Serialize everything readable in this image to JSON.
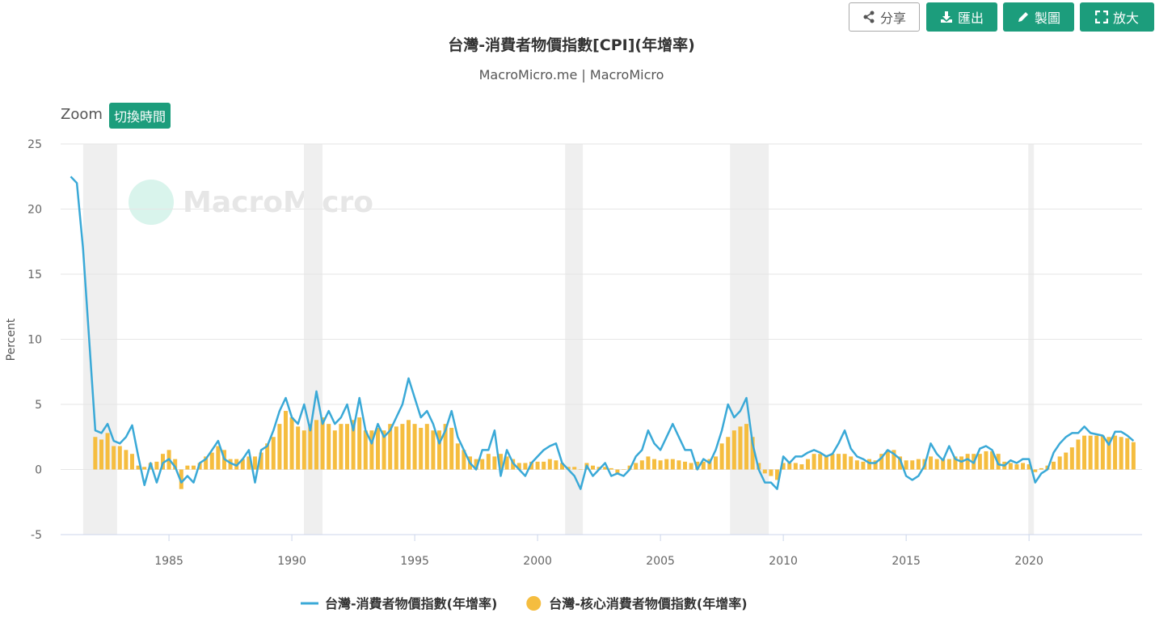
{
  "toolbar": {
    "share": "分享",
    "export": "匯出",
    "draw": "製圖",
    "expand": "放大"
  },
  "zoom": {
    "label": "Zoom",
    "button": "切換時間"
  },
  "chart_data": {
    "type": "line-bar",
    "title": "台灣-消費者物價指數[CPI](年增率)",
    "subtitle": "MacroMicro.me | MacroMicro",
    "watermark": "MacroMicro",
    "y_label": "Percent",
    "xlim": [
      1980.59,
      2024.6
    ],
    "xticks": [
      1985,
      1990,
      1995,
      2000,
      2005,
      2010,
      2015,
      2020
    ],
    "ylim": [
      -5,
      25
    ],
    "yticks": [
      -5,
      0,
      5,
      10,
      15,
      20,
      25
    ],
    "grid": true,
    "shaded_ranges": [
      [
        1981.51,
        1982.89
      ],
      [
        1990.49,
        1991.25
      ],
      [
        2001.12,
        2001.84
      ],
      [
        2007.83,
        2009.41
      ],
      [
        2019.97,
        2020.2
      ]
    ],
    "x": [
      1981,
      1981.25,
      1981.5,
      1981.75,
      1982,
      1982.25,
      1982.5,
      1982.75,
      1983,
      1983.25,
      1983.5,
      1983.75,
      1984,
      1984.25,
      1984.5,
      1984.75,
      1985,
      1985.25,
      1985.5,
      1985.75,
      1986,
      1986.25,
      1986.5,
      1986.75,
      1987,
      1987.25,
      1987.5,
      1987.75,
      1988,
      1988.25,
      1988.5,
      1988.75,
      1989,
      1989.25,
      1989.5,
      1989.75,
      1990,
      1990.25,
      1990.5,
      1990.75,
      1991,
      1991.25,
      1991.5,
      1991.75,
      1992,
      1992.25,
      1992.5,
      1992.75,
      1993,
      1993.25,
      1993.5,
      1993.75,
      1994,
      1994.25,
      1994.5,
      1994.75,
      1995,
      1995.25,
      1995.5,
      1995.75,
      1996,
      1996.25,
      1996.5,
      1996.75,
      1997,
      1997.25,
      1997.5,
      1997.75,
      1998,
      1998.25,
      1998.5,
      1998.75,
      1999,
      1999.25,
      1999.5,
      1999.75,
      2000,
      2000.25,
      2000.5,
      2000.75,
      2001,
      2001.25,
      2001.5,
      2001.75,
      2002,
      2002.25,
      2002.5,
      2002.75,
      2003,
      2003.25,
      2003.5,
      2003.75,
      2004,
      2004.25,
      2004.5,
      2004.75,
      2005,
      2005.25,
      2005.5,
      2005.75,
      2006,
      2006.25,
      2006.5,
      2006.75,
      2007,
      2007.25,
      2007.5,
      2007.75,
      2008,
      2008.25,
      2008.5,
      2008.75,
      2009,
      2009.25,
      2009.5,
      2009.75,
      2010,
      2010.25,
      2010.5,
      2010.75,
      2011,
      2011.25,
      2011.5,
      2011.75,
      2012,
      2012.25,
      2012.5,
      2012.75,
      2013,
      2013.25,
      2013.5,
      2013.75,
      2014,
      2014.25,
      2014.5,
      2014.75,
      2015,
      2015.25,
      2015.5,
      2015.75,
      2016,
      2016.25,
      2016.5,
      2016.75,
      2017,
      2017.25,
      2017.5,
      2017.75,
      2018,
      2018.25,
      2018.5,
      2018.75,
      2019,
      2019.25,
      2019.5,
      2019.75,
      2020,
      2020.25,
      2020.5,
      2020.75,
      2021,
      2021.25,
      2021.5,
      2021.75,
      2022,
      2022.25,
      2022.5,
      2022.75,
      2023,
      2023.25,
      2023.5,
      2023.75,
      2024,
      2024.25
    ],
    "series": [
      {
        "name": "台灣-消費者物價指數(年增率)",
        "kind": "line",
        "color": "#3aa9d7",
        "values": [
          22.5,
          22.0,
          17.0,
          10,
          3,
          2.8,
          3.5,
          2.2,
          2.0,
          2.5,
          3.4,
          1.0,
          -1.2,
          0.5,
          -1.0,
          0.5,
          0.8,
          0.2,
          -1.0,
          -0.5,
          -1.0,
          0.5,
          0.8,
          1.5,
          2.2,
          0.8,
          0.5,
          0.3,
          0.8,
          1.5,
          -1.0,
          1.5,
          1.8,
          3.0,
          4.5,
          5.5,
          4.0,
          3.5,
          5.0,
          3.0,
          6.0,
          3.5,
          4.5,
          3.5,
          4.0,
          5.0,
          3.0,
          5.5,
          3.0,
          2.0,
          3.5,
          2.5,
          3.0,
          4.0,
          5.0,
          7.0,
          5.5,
          4.0,
          4.5,
          3.5,
          2.0,
          3.0,
          4.5,
          2.5,
          1.5,
          0.5,
          0.0,
          1.5,
          1.5,
          3.0,
          -0.5,
          1.5,
          0.5,
          0.0,
          -0.5,
          0.5,
          1.0,
          1.5,
          1.8,
          2.0,
          0.5,
          0.0,
          -0.5,
          -1.5,
          0.3,
          -0.5,
          0.0,
          0.5,
          -0.5,
          -0.3,
          -0.5,
          0.0,
          1.0,
          1.5,
          3.0,
          2.0,
          1.5,
          2.5,
          3.5,
          2.5,
          1.5,
          1.5,
          0.0,
          0.8,
          0.5,
          1.5,
          3.0,
          5.0,
          4.0,
          4.5,
          5.5,
          2.0,
          0.0,
          -1.0,
          -1.0,
          -1.5,
          1.0,
          0.5,
          1.0,
          1.0,
          1.3,
          1.5,
          1.3,
          1.0,
          1.2,
          2.0,
          3.0,
          1.6,
          1.0,
          0.8,
          0.5,
          0.5,
          0.9,
          1.5,
          1.2,
          0.8,
          -0.5,
          -0.8,
          -0.5,
          0.3,
          2.0,
          1.2,
          0.7,
          1.8,
          0.8,
          0.6,
          0.8,
          0.5,
          1.6,
          1.8,
          1.5,
          0.4,
          0.3,
          0.7,
          0.5,
          0.8,
          0.8,
          -1.0,
          -0.3,
          0.0,
          1.3,
          2.0,
          2.5,
          2.8,
          2.8,
          3.3,
          2.8,
          2.7,
          2.6,
          1.9,
          2.9,
          2.9,
          2.6,
          2.2
        ]
      },
      {
        "name": "台灣-核心消費者物價指數(年增率)",
        "kind": "bar",
        "color": "#f5bd3f",
        "values": [
          null,
          null,
          null,
          null,
          2.5,
          2.3,
          2.8,
          1.8,
          1.8,
          1.5,
          1.2,
          0.3,
          0.2,
          0.5,
          0.6,
          1.2,
          1.5,
          0.8,
          -1.5,
          0.3,
          0.3,
          0.5,
          1.0,
          1.3,
          1.8,
          1.5,
          0.8,
          0.8,
          0.8,
          1.0,
          1.0,
          1.3,
          2.0,
          2.5,
          3.5,
          4.5,
          4.0,
          3.3,
          3.0,
          3.5,
          3.8,
          4.0,
          3.5,
          3.0,
          3.5,
          3.5,
          3.8,
          4.0,
          3.0,
          3.0,
          3.2,
          3.0,
          3.5,
          3.3,
          3.5,
          3.8,
          3.5,
          3.2,
          3.5,
          3.0,
          3.0,
          3.5,
          3.2,
          2.0,
          1.5,
          1.0,
          0.8,
          0.8,
          1.2,
          1.0,
          1.2,
          1.0,
          0.8,
          0.5,
          0.5,
          0.6,
          0.6,
          0.6,
          0.8,
          0.7,
          0.5,
          0.2,
          0.2,
          0.0,
          0.5,
          0.3,
          0.2,
          0.2,
          0.1,
          -0.3,
          0.0,
          0.3,
          0.5,
          0.7,
          1.0,
          0.8,
          0.7,
          0.8,
          0.8,
          0.7,
          0.6,
          0.5,
          0.6,
          0.6,
          0.8,
          1.0,
          2.0,
          2.5,
          3.0,
          3.3,
          3.5,
          2.5,
          0.5,
          -0.3,
          -0.5,
          -0.8,
          0.5,
          0.5,
          0.5,
          0.4,
          0.8,
          1.2,
          1.2,
          1.1,
          1.2,
          1.2,
          1.2,
          1.0,
          0.7,
          0.6,
          0.8,
          0.7,
          1.2,
          1.5,
          1.5,
          1.0,
          0.7,
          0.7,
          0.8,
          0.8,
          1.0,
          0.8,
          0.8,
          0.8,
          1.0,
          1.0,
          1.2,
          1.2,
          1.2,
          1.4,
          1.4,
          1.2,
          0.6,
          0.5,
          0.4,
          0.5,
          0.4,
          -0.2,
          0.1,
          0.3,
          0.6,
          1.0,
          1.3,
          1.7,
          2.3,
          2.6,
          2.6,
          2.6,
          2.6,
          2.5,
          2.6,
          2.5,
          2.4,
          2.1
        ]
      }
    ]
  }
}
